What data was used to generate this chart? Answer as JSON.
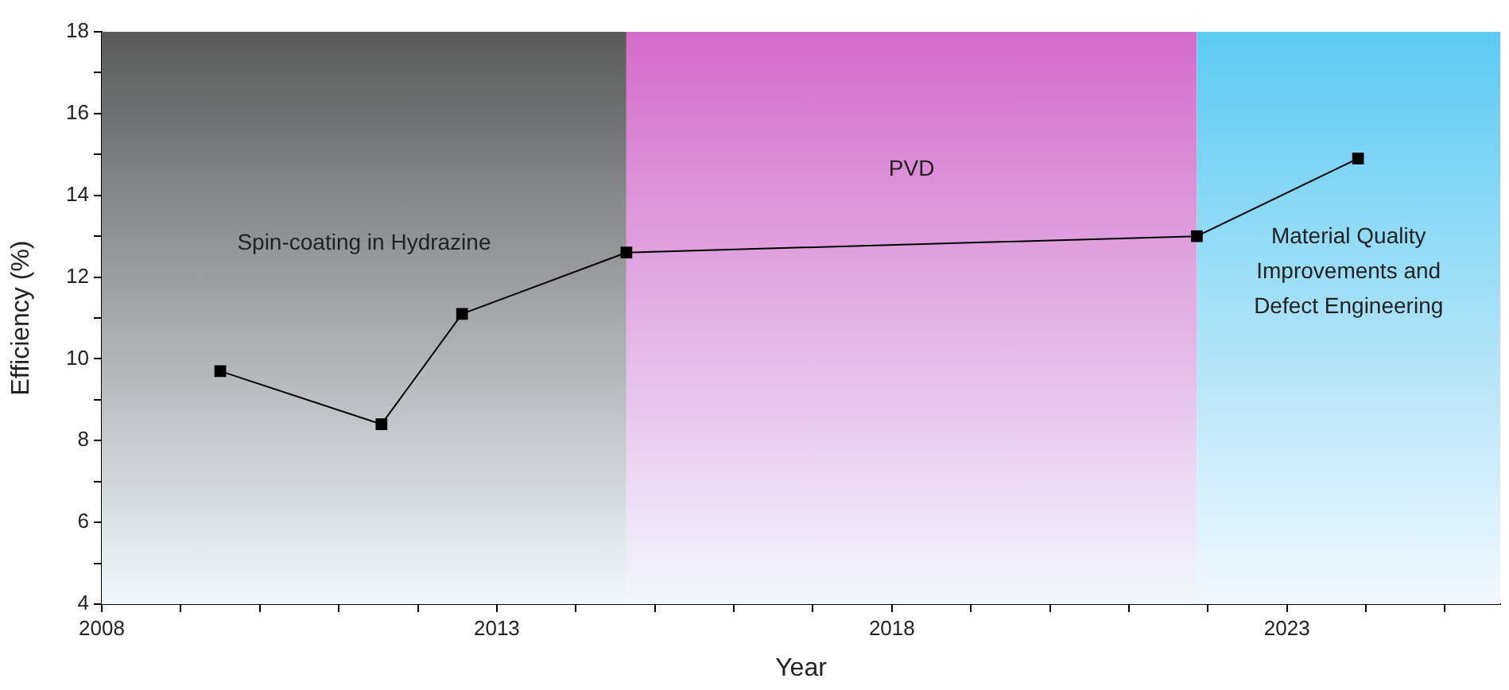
{
  "chart_data": {
    "type": "line",
    "xlabel": "Year",
    "ylabel": "Efficiency (%)",
    "x": [
      2009.5,
      2011.54,
      2012.56,
      2014.64,
      2021.86,
      2023.9
    ],
    "series": [
      {
        "color": "#000000",
        "values": [
          9.7,
          8.4,
          11.1,
          12.6,
          13.0,
          14.9
        ]
      }
    ],
    "xlim": [
      2008,
      2025.7
    ],
    "xticks": [
      2008,
      {
        "value": 2009,
        "label": null
      },
      {
        "value": 2010,
        "label": null
      },
      {
        "value": 2011,
        "label": null
      },
      {
        "value": 2012,
        "label": null
      },
      2013,
      {
        "value": 2014,
        "label": null
      },
      {
        "value": 2015,
        "label": null
      },
      {
        "value": 2016,
        "label": null
      },
      {
        "value": 2017,
        "label": null
      },
      2018,
      {
        "value": 2019,
        "label": null
      },
      {
        "value": 2020,
        "label": null
      },
      {
        "value": 2021,
        "label": null
      },
      {
        "value": 2022,
        "label": null
      },
      2023,
      {
        "value": 2024,
        "label": null
      },
      {
        "value": 2025,
        "label": null
      }
    ],
    "ylim": [
      4,
      18
    ],
    "yticks": [
      4,
      {
        "value": 5,
        "label": null
      },
      6,
      {
        "value": 7,
        "label": null
      },
      8,
      {
        "value": 9,
        "label": null
      },
      10,
      {
        "value": 11,
        "label": null
      },
      12,
      {
        "value": 13,
        "label": null
      },
      14,
      {
        "value": 15,
        "label": null
      },
      16,
      {
        "value": 17,
        "label": null
      },
      18
    ],
    "bands": [
      {
        "axis": "x",
        "from": 2008,
        "to": 2014.64,
        "label": "Spin-coating in Hydrazine",
        "color": "#5a5a5a"
      },
      {
        "axis": "x",
        "from": 2014.64,
        "to": 2021.86,
        "label": "PVD",
        "color": "#d46bcb"
      },
      {
        "axis": "x",
        "from": 2021.86,
        "to": 2025.7,
        "label": "Material Quality Improvements and Defect Engineering",
        "color": "#5ccaf2"
      }
    ],
    "marker": "square",
    "line_style": "solid",
    "grid": false,
    "legend": false
  }
}
